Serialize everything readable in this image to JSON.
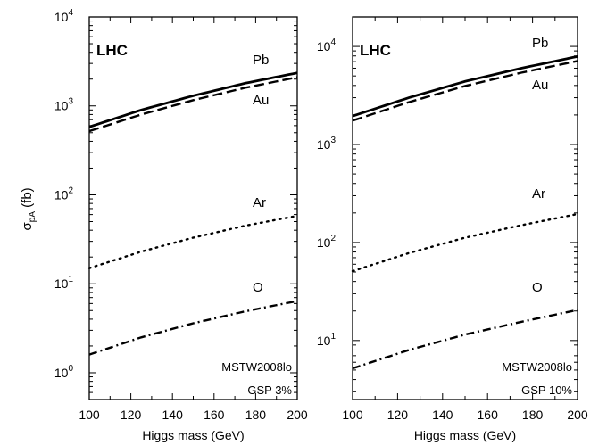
{
  "chart_data": [
    {
      "type": "line",
      "xlabel": "Higgs mass (GeV)",
      "ylabel": "σ",
      "ylabel_sub": "pA",
      "ylabel_unit": " (fb)",
      "yscale": "log",
      "xlim": [
        100,
        200
      ],
      "ylim": [
        0.5,
        10000
      ],
      "xticks": [
        100,
        120,
        140,
        160,
        180,
        200
      ],
      "xtick_labels": [
        "100",
        "120",
        "140",
        "160",
        "180",
        "200"
      ],
      "ytick_exponents": [
        0,
        1,
        2,
        3,
        4
      ],
      "tick_base": "10",
      "annotation_title": "LHC",
      "annotation_lines": [
        "MSTW2008lo",
        "GSP 3%"
      ],
      "series": [
        {
          "name": "Pb",
          "style": "solid",
          "x": [
            100,
            125,
            150,
            175,
            200
          ],
          "y": [
            580,
            900,
            1300,
            1800,
            2350
          ]
        },
        {
          "name": "Au",
          "style": "dashed",
          "x": [
            100,
            125,
            150,
            175,
            200
          ],
          "y": [
            520,
            800,
            1160,
            1600,
            2100
          ]
        },
        {
          "name": "Ar",
          "style": "dotted",
          "x": [
            100,
            125,
            150,
            175,
            200
          ],
          "y": [
            15,
            23,
            33,
            45,
            58
          ]
        },
        {
          "name": "O",
          "style": "dashdot",
          "x": [
            100,
            125,
            150,
            175,
            200
          ],
          "y": [
            1.6,
            2.5,
            3.6,
            4.9,
            6.4
          ]
        }
      ]
    },
    {
      "type": "line",
      "xlabel": "Higgs mass (GeV)",
      "ylabel": "",
      "yscale": "log",
      "xlim": [
        100,
        200
      ],
      "ylim": [
        2.5,
        20000
      ],
      "xticks": [
        100,
        120,
        140,
        160,
        180,
        200
      ],
      "xtick_labels": [
        "100",
        "120",
        "140",
        "160",
        "180",
        "200"
      ],
      "ytick_exponents": [
        1,
        2,
        3,
        4
      ],
      "tick_base": "10",
      "annotation_title": "LHC",
      "annotation_lines": [
        "MSTW2008lo",
        "GSP 10%"
      ],
      "series": [
        {
          "name": "Pb",
          "style": "solid",
          "x": [
            100,
            125,
            150,
            175,
            200
          ],
          "y": [
            1950,
            3000,
            4400,
            6000,
            7900
          ]
        },
        {
          "name": "Au",
          "style": "dashed",
          "x": [
            100,
            125,
            150,
            175,
            200
          ],
          "y": [
            1750,
            2700,
            3950,
            5400,
            7100
          ]
        },
        {
          "name": "Ar",
          "style": "dotted",
          "x": [
            100,
            125,
            150,
            175,
            200
          ],
          "y": [
            51,
            78,
            112,
            150,
            195
          ]
        },
        {
          "name": "O",
          "style": "dashdot",
          "x": [
            100,
            125,
            150,
            175,
            200
          ],
          "y": [
            5.2,
            8.0,
            11.5,
            15.5,
            20.5
          ]
        }
      ]
    }
  ]
}
